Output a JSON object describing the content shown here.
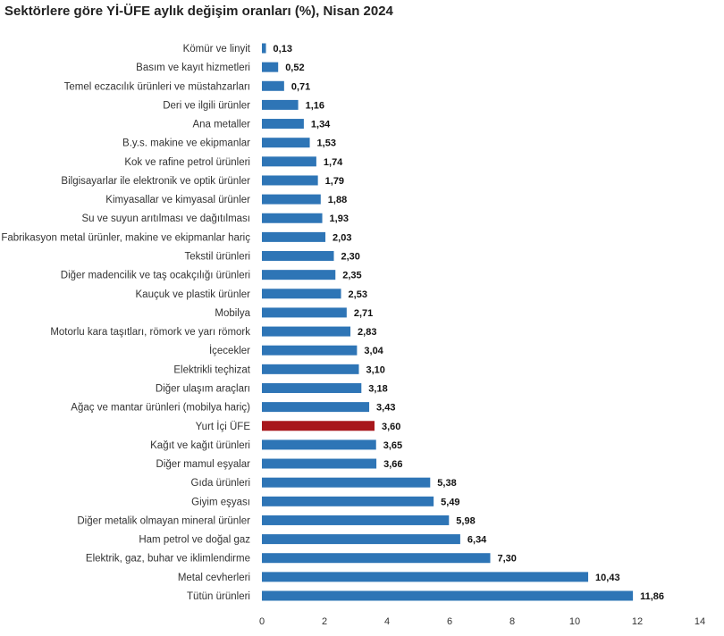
{
  "chart_data": {
    "type": "bar",
    "orientation": "horizontal",
    "title": "Sektörlere göre Yİ-ÜFE aylık değişim oranları (%), Nisan 2024",
    "categories": [
      "Kömür ve linyit",
      "Basım ve kayıt hizmetleri",
      "Temel eczacılık ürünleri ve müstahzarları",
      "Deri ve ilgili ürünler",
      "Ana metaller",
      "B.y.s. makine ve ekipmanlar",
      "Kok ve rafine petrol ürünleri",
      "Bilgisayarlar ile elektronik ve optik ürünler",
      "Kimyasallar ve kimyasal ürünler",
      "Su ve suyun arıtılması ve dağıtılması",
      "Fabrikasyon metal ürünler, makine ve ekipmanlar hariç",
      "Tekstil ürünleri",
      "Diğer madencilik ve taş ocakçılığı ürünleri",
      "Kauçuk ve plastik ürünler",
      "Mobilya",
      "Motorlu kara taşıtları, römork ve yarı römork",
      "İçecekler",
      "Elektrikli teçhizat",
      "Diğer ulaşım araçları",
      "Ağaç ve mantar ürünleri (mobilya hariç)",
      "Yurt İçi ÜFE",
      "Kağıt ve kağıt ürünleri",
      "Diğer mamul eşyalar",
      "Gıda ürünleri",
      "Giyim eşyası",
      "Diğer metalik olmayan mineral ürünler",
      "Ham petrol ve doğal gaz",
      "Elektrik, gaz, buhar ve iklimlendirme",
      "Metal cevherleri",
      "Tütün ürünleri"
    ],
    "values": [
      0.13,
      0.52,
      0.71,
      1.16,
      1.34,
      1.53,
      1.74,
      1.79,
      1.88,
      1.93,
      2.03,
      2.3,
      2.35,
      2.53,
      2.71,
      2.83,
      3.04,
      3.1,
      3.18,
      3.43,
      3.6,
      3.65,
      3.66,
      5.38,
      5.49,
      5.98,
      6.34,
      7.3,
      10.43,
      11.86
    ],
    "value_labels": [
      "0,13",
      "0,52",
      "0,71",
      "1,16",
      "1,34",
      "1,53",
      "1,74",
      "1,79",
      "1,88",
      "1,93",
      "2,03",
      "2,30",
      "2,35",
      "2,53",
      "2,71",
      "2,83",
      "3,04",
      "3,10",
      "3,18",
      "3,43",
      "3,60",
      "3,65",
      "3,66",
      "5,38",
      "5,49",
      "5,98",
      "6,34",
      "7,30",
      "10,43",
      "11,86"
    ],
    "highlight_category": "Yurt İçi ÜFE",
    "xlim": [
      0,
      14
    ],
    "x_ticks": [
      0,
      2,
      4,
      6,
      8,
      10,
      12,
      14
    ],
    "grid": false,
    "legend": "none",
    "colors": {
      "bar": "#2e75b6",
      "highlight": "#a8171c"
    }
  }
}
